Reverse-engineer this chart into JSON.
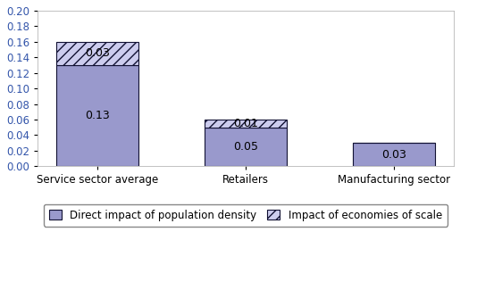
{
  "categories": [
    "Service sector average",
    "Retailers",
    "Manufacturing sector"
  ],
  "direct_impact": [
    0.13,
    0.05,
    0.03
  ],
  "economies_of_scale": [
    0.03,
    0.01,
    0.0
  ],
  "direct_labels": [
    "0.13",
    "0.05",
    "0.03"
  ],
  "scale_labels": [
    "0.03",
    "0.01",
    ""
  ],
  "bar_color_direct": "#9999cc",
  "bar_color_scale_face": "#ccccee",
  "bar_edge_color": "#111133",
  "hatch_pattern": "///",
  "ylim": [
    0.0,
    0.2
  ],
  "yticks": [
    0.0,
    0.02,
    0.04,
    0.06,
    0.08,
    0.1,
    0.12,
    0.14,
    0.16,
    0.18,
    0.2
  ],
  "ytick_color": "#3355aa",
  "legend_direct": "Direct impact of population density",
  "legend_scale": "Impact of economies of scale",
  "bar_width": 0.55,
  "label_fontsize": 9,
  "tick_fontsize": 8.5,
  "legend_fontsize": 8.5,
  "x_positions": [
    0,
    1,
    2
  ]
}
